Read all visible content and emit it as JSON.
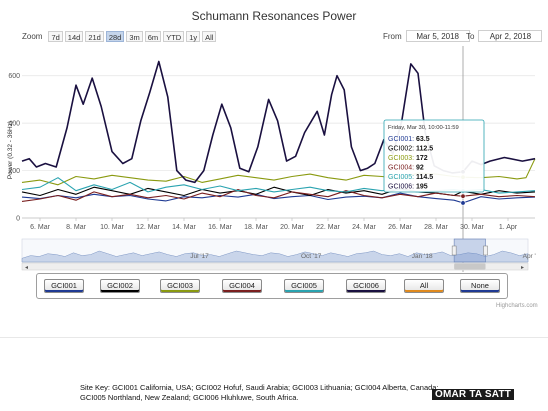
{
  "chart_data": {
    "type": "line",
    "title": "Schumann Resonances Power",
    "ylabel": "Power (0.32 - 36Hz)",
    "xlabel": "",
    "ylim": [
      0,
      700
    ],
    "y_ticks": [
      0,
      200,
      400,
      600
    ],
    "grid": "horizontal",
    "x_ticks": [
      "6. Mar",
      "8. Mar",
      "10. Mar",
      "12. Mar",
      "14. Mar",
      "16. Mar",
      "18. Mar",
      "20. Mar",
      "22. Mar",
      "24. Mar",
      "26. Mar",
      "28. Mar",
      "30. Mar",
      "1. Apr"
    ],
    "x_range_days": [
      5.0,
      33.5
    ],
    "series": [
      {
        "name": "GCI001",
        "color": "#1f3a93",
        "points": [
          [
            5,
            88
          ],
          [
            6,
            82
          ],
          [
            7,
            95
          ],
          [
            8,
            85
          ],
          [
            9,
            100
          ],
          [
            10,
            90
          ],
          [
            11,
            95
          ],
          [
            12,
            80
          ],
          [
            13,
            72
          ],
          [
            14,
            90
          ],
          [
            15,
            85
          ],
          [
            16,
            95
          ],
          [
            17,
            88
          ],
          [
            18,
            100
          ],
          [
            19,
            82
          ],
          [
            20,
            90
          ],
          [
            21,
            95
          ],
          [
            22,
            78
          ],
          [
            23,
            88
          ],
          [
            24,
            92
          ],
          [
            25,
            85
          ],
          [
            26,
            105
          ],
          [
            27,
            90
          ],
          [
            28,
            82
          ],
          [
            29,
            75
          ],
          [
            29.5,
            63.5
          ],
          [
            30.5,
            90
          ],
          [
            31.5,
            80
          ],
          [
            32.5,
            85
          ],
          [
            33.5,
            88
          ]
        ]
      },
      {
        "name": "GCI002",
        "color": "#000000",
        "points": [
          [
            5,
            110
          ],
          [
            6,
            95
          ],
          [
            7,
            120
          ],
          [
            8,
            100
          ],
          [
            9,
            130
          ],
          [
            10,
            115
          ],
          [
            11,
            100
          ],
          [
            12,
            125
          ],
          [
            13,
            110
          ],
          [
            14,
            95
          ],
          [
            15,
            120
          ],
          [
            16,
            105
          ],
          [
            17,
            115
          ],
          [
            18,
            100
          ],
          [
            19,
            130
          ],
          [
            20,
            110
          ],
          [
            21,
            95
          ],
          [
            22,
            120
          ],
          [
            23,
            105
          ],
          [
            24,
            115
          ],
          [
            25,
            100
          ],
          [
            26,
            125
          ],
          [
            27,
            110
          ],
          [
            28,
            105
          ],
          [
            29,
            95
          ],
          [
            29.5,
            112.5
          ],
          [
            30.5,
            100
          ],
          [
            31.5,
            115
          ],
          [
            32.5,
            105
          ],
          [
            33.5,
            110
          ]
        ]
      },
      {
        "name": "GCI003",
        "color": "#8a9a10",
        "points": [
          [
            5,
            150
          ],
          [
            6,
            160
          ],
          [
            7,
            140
          ],
          [
            8,
            175
          ],
          [
            9,
            165
          ],
          [
            10,
            180
          ],
          [
            11,
            170
          ],
          [
            12,
            160
          ],
          [
            13,
            155
          ],
          [
            14,
            175
          ],
          [
            15,
            150
          ],
          [
            16,
            165
          ],
          [
            17,
            180
          ],
          [
            18,
            170
          ],
          [
            19,
            160
          ],
          [
            20,
            175
          ],
          [
            21,
            185
          ],
          [
            22,
            170
          ],
          [
            23,
            160
          ],
          [
            24,
            180
          ],
          [
            25,
            175
          ],
          [
            26,
            165
          ],
          [
            27,
            190
          ],
          [
            28,
            185
          ],
          [
            29,
            175
          ],
          [
            29.5,
            172
          ],
          [
            30.5,
            170
          ],
          [
            31.5,
            175
          ],
          [
            32.5,
            165
          ],
          [
            33,
            170
          ],
          [
            33.5,
            250
          ]
        ]
      },
      {
        "name": "GCI004",
        "color": "#7a1f1f",
        "points": [
          [
            5,
            70
          ],
          [
            6,
            80
          ],
          [
            7,
            95
          ],
          [
            8,
            75
          ],
          [
            9,
            110
          ],
          [
            10,
            90
          ],
          [
            11,
            100
          ],
          [
            12,
            85
          ],
          [
            13,
            95
          ],
          [
            14,
            80
          ],
          [
            15,
            105
          ],
          [
            16,
            90
          ],
          [
            17,
            120
          ],
          [
            18,
            95
          ],
          [
            19,
            85
          ],
          [
            20,
            110
          ],
          [
            21,
            100
          ],
          [
            22,
            90
          ],
          [
            23,
            115
          ],
          [
            24,
            95
          ],
          [
            25,
            85
          ],
          [
            26,
            100
          ],
          [
            27,
            90
          ],
          [
            28,
            105
          ],
          [
            29,
            95
          ],
          [
            29.5,
            92
          ],
          [
            30.5,
            100
          ],
          [
            31.5,
            90
          ],
          [
            32.5,
            95
          ],
          [
            33.5,
            90
          ]
        ]
      },
      {
        "name": "GCI005",
        "color": "#2aa3b0",
        "points": [
          [
            5,
            120
          ],
          [
            6,
            130
          ],
          [
            7,
            170
          ],
          [
            8,
            115
          ],
          [
            9,
            140
          ],
          [
            10,
            120
          ],
          [
            11,
            150
          ],
          [
            12,
            110
          ],
          [
            13,
            130
          ],
          [
            14,
            140
          ],
          [
            15,
            120
          ],
          [
            16,
            135
          ],
          [
            17,
            115
          ],
          [
            18,
            125
          ],
          [
            19,
            110
          ],
          [
            20,
            120
          ],
          [
            21,
            130
          ],
          [
            22,
            115
          ],
          [
            23,
            110
          ],
          [
            24,
            125
          ],
          [
            25,
            115
          ],
          [
            26,
            120
          ],
          [
            27,
            110
          ],
          [
            28,
            115
          ],
          [
            29,
            120
          ],
          [
            29.5,
            114.5
          ],
          [
            30.5,
            120
          ],
          [
            31.5,
            105
          ],
          [
            32.5,
            110
          ],
          [
            33.5,
            115
          ]
        ]
      },
      {
        "name": "GCI006",
        "color": "#1a1040",
        "points": [
          [
            5,
            240
          ],
          [
            5.4,
            250
          ],
          [
            5.8,
            215
          ],
          [
            6.3,
            230
          ],
          [
            6.9,
            215
          ],
          [
            7.5,
            380
          ],
          [
            8.0,
            560
          ],
          [
            8.4,
            480
          ],
          [
            8.9,
            590
          ],
          [
            9.4,
            470
          ],
          [
            10.0,
            280
          ],
          [
            10.6,
            230
          ],
          [
            11.1,
            250
          ],
          [
            11.6,
            410
          ],
          [
            12.1,
            530
          ],
          [
            12.6,
            660
          ],
          [
            13.1,
            510
          ],
          [
            13.6,
            200
          ],
          [
            14.1,
            160
          ],
          [
            14.6,
            150
          ],
          [
            15.1,
            200
          ],
          [
            15.6,
            350
          ],
          [
            16.1,
            480
          ],
          [
            16.6,
            380
          ],
          [
            17.1,
            210
          ],
          [
            17.6,
            195
          ],
          [
            18.1,
            300
          ],
          [
            18.7,
            500
          ],
          [
            19.2,
            410
          ],
          [
            19.7,
            240
          ],
          [
            20.2,
            260
          ],
          [
            20.7,
            360
          ],
          [
            21.4,
            450
          ],
          [
            21.8,
            350
          ],
          [
            22.2,
            520
          ],
          [
            22.5,
            600
          ],
          [
            22.9,
            540
          ],
          [
            23.3,
            300
          ],
          [
            23.8,
            200
          ],
          [
            24.2,
            210
          ],
          [
            24.6,
            230
          ],
          [
            25.1,
            330
          ],
          [
            25.6,
            270
          ],
          [
            26.1,
            410
          ],
          [
            26.6,
            650
          ],
          [
            27.0,
            610
          ],
          [
            27.4,
            360
          ],
          [
            27.9,
            220
          ],
          [
            28.4,
            200
          ],
          [
            28.9,
            190
          ],
          [
            29.5,
            195
          ],
          [
            30.0,
            240
          ],
          [
            30.5,
            225
          ],
          [
            31.0,
            240
          ],
          [
            31.8,
            255
          ],
          [
            32.8,
            240
          ],
          [
            33.5,
            250
          ]
        ]
      }
    ],
    "tooltip": {
      "header": "Friday, Mar 30, 10:00-11:59",
      "rows": [
        {
          "label": "GCI001",
          "value": "63.5",
          "color": "#1f3a93"
        },
        {
          "label": "GCI002",
          "value": "112.5",
          "color": "#000000"
        },
        {
          "label": "GCI003",
          "value": "172",
          "color": "#8a9a10"
        },
        {
          "label": "GCI004",
          "value": "92",
          "color": "#7a1f1f"
        },
        {
          "label": "GCI005",
          "value": "114.5",
          "color": "#2aa3b0"
        },
        {
          "label": "GCI006",
          "value": "195",
          "color": "#1a1040"
        }
      ],
      "x_day": 29.5
    },
    "navigator": {
      "labels": [
        "Jul '17",
        "Oct '17",
        "Jan '18",
        "Apr '"
      ],
      "label_months": [
        6,
        9,
        12,
        15
      ],
      "range_months": [
        1.5,
        15.2
      ],
      "selected_months": [
        13.2,
        14.05
      ],
      "profile": [
        0.2,
        0.35,
        0.3,
        0.45,
        0.4,
        0.3,
        0.5,
        0.35,
        0.4,
        0.6,
        0.45,
        0.3,
        0.4,
        0.5,
        0.35,
        0.45,
        0.55,
        0.4,
        0.3,
        0.45,
        0.5,
        0.35,
        0.4,
        0.3,
        0.45,
        0.6,
        0.5,
        0.4,
        0.35,
        0.5,
        0.45,
        0.3,
        0.4,
        0.55,
        0.45,
        0.35,
        0.5,
        0.4,
        0.3,
        0.45,
        0.5,
        0.6,
        0.4,
        0.35,
        0.45,
        0.3,
        0.5,
        0.4,
        0.45,
        0.55,
        0.35,
        0.4,
        0.5,
        0.45,
        0.3,
        0.4,
        0.6,
        0.5,
        0.35,
        0.45
      ]
    }
  },
  "zoom": {
    "label": "Zoom",
    "buttons": [
      "7d",
      "14d",
      "21d",
      "28d",
      "3m",
      "6m",
      "YTD",
      "1y",
      "All"
    ],
    "active": "28d"
  },
  "range": {
    "from_label": "From",
    "from_value": "Mar 5, 2018",
    "to_label": "To",
    "to_value": "Apr 2, 2018"
  },
  "legend": [
    {
      "label": "GCI001",
      "color": "#1f3a93"
    },
    {
      "label": "GCI002",
      "color": "#000000"
    },
    {
      "label": "GCI003",
      "color": "#8a9a10"
    },
    {
      "label": "GCI004",
      "color": "#7a1f1f"
    },
    {
      "label": "GCI005",
      "color": "#2aa3b0"
    },
    {
      "label": "GCI006",
      "color": "#1a1040"
    },
    {
      "label": "All",
      "color": "#e08a1e"
    },
    {
      "label": "None",
      "color": "#1f3a93"
    }
  ],
  "credit": "Highcharts.com",
  "site_key": {
    "text": "Site Key: GCI001 California, USA; GCI002 Hofuf, Saudi Arabia; GCI003 Lithuania; GCI004 Alberta, Canada; GCI005 Northland, New Zealand; GCI006 Hluhluwe, South Africa."
  },
  "watermark": "OMAR TA SATT"
}
